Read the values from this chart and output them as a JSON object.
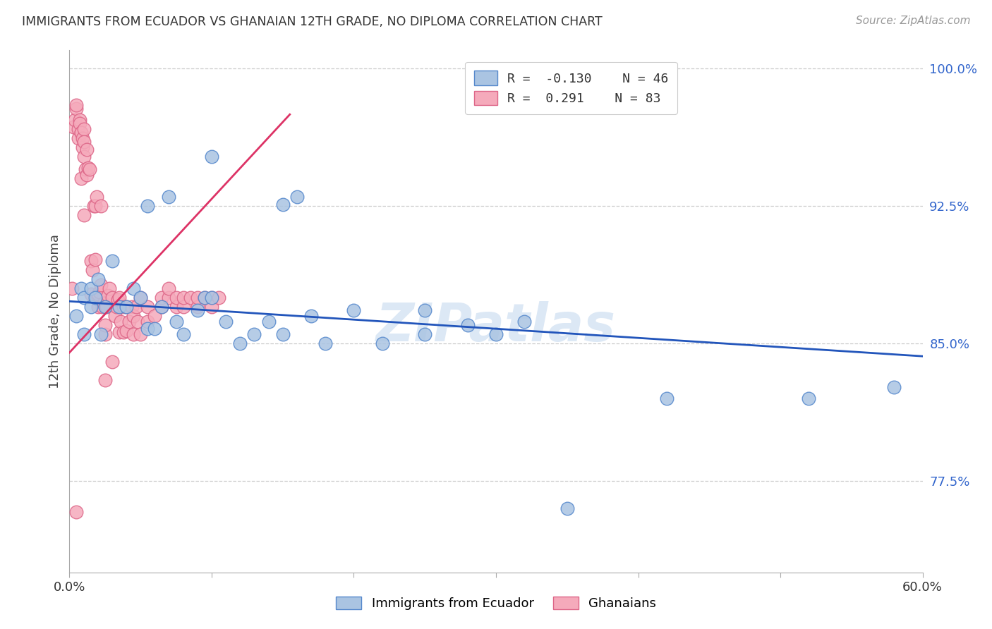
{
  "title": "IMMIGRANTS FROM ECUADOR VS GHANAIAN 12TH GRADE, NO DIPLOMA CORRELATION CHART",
  "source": "Source: ZipAtlas.com",
  "xlabel_blue": "Immigrants from Ecuador",
  "xlabel_pink": "Ghanaians",
  "ylabel": "12th Grade, No Diploma",
  "xmin": 0.0,
  "xmax": 0.6,
  "ymin": 0.725,
  "ymax": 1.01,
  "yticks": [
    0.775,
    0.85,
    0.925,
    1.0
  ],
  "ytick_labels": [
    "77.5%",
    "85.0%",
    "92.5%",
    "100.0%"
  ],
  "xticks": [
    0.0,
    0.1,
    0.2,
    0.3,
    0.4,
    0.5,
    0.6
  ],
  "xtick_labels": [
    "0.0%",
    "",
    "",
    "",
    "",
    "",
    "60.0%"
  ],
  "blue_R": -0.13,
  "blue_N": 46,
  "pink_R": 0.291,
  "pink_N": 83,
  "blue_color": "#aac4e2",
  "blue_edge": "#5588cc",
  "pink_color": "#f5aabb",
  "pink_edge": "#dd6688",
  "blue_line_color": "#2255bb",
  "pink_line_color": "#dd3366",
  "watermark": "ZIPatlas",
  "watermark_color": "#dce8f5",
  "blue_line_x0": 0.0,
  "blue_line_x1": 0.6,
  "blue_line_y0": 0.873,
  "blue_line_y1": 0.843,
  "pink_line_x0": 0.0,
  "pink_line_x1": 0.155,
  "pink_line_y0": 0.845,
  "pink_line_y1": 0.975,
  "blue_scatter_x": [
    0.005,
    0.008,
    0.01,
    0.01,
    0.015,
    0.015,
    0.018,
    0.02,
    0.022,
    0.025,
    0.03,
    0.035,
    0.04,
    0.045,
    0.05,
    0.055,
    0.06,
    0.065,
    0.07,
    0.075,
    0.08,
    0.09,
    0.095,
    0.1,
    0.11,
    0.12,
    0.13,
    0.14,
    0.15,
    0.16,
    0.17,
    0.18,
    0.2,
    0.22,
    0.25,
    0.28,
    0.3,
    0.32,
    0.35,
    0.25,
    0.42,
    0.52,
    0.58,
    0.055,
    0.15,
    0.1
  ],
  "blue_scatter_y": [
    0.865,
    0.88,
    0.855,
    0.875,
    0.87,
    0.88,
    0.875,
    0.885,
    0.855,
    0.87,
    0.895,
    0.87,
    0.87,
    0.88,
    0.875,
    0.858,
    0.858,
    0.87,
    0.93,
    0.862,
    0.855,
    0.868,
    0.875,
    0.952,
    0.862,
    0.85,
    0.855,
    0.862,
    0.926,
    0.93,
    0.865,
    0.85,
    0.868,
    0.85,
    0.855,
    0.86,
    0.855,
    0.862,
    0.76,
    0.868,
    0.82,
    0.82,
    0.826,
    0.925,
    0.855,
    0.875
  ],
  "pink_scatter_x": [
    0.002,
    0.003,
    0.004,
    0.005,
    0.005,
    0.006,
    0.006,
    0.007,
    0.007,
    0.008,
    0.008,
    0.008,
    0.009,
    0.009,
    0.01,
    0.01,
    0.01,
    0.01,
    0.011,
    0.012,
    0.012,
    0.013,
    0.014,
    0.015,
    0.015,
    0.016,
    0.017,
    0.018,
    0.018,
    0.019,
    0.02,
    0.02,
    0.02,
    0.021,
    0.022,
    0.022,
    0.023,
    0.024,
    0.025,
    0.025,
    0.026,
    0.027,
    0.028,
    0.03,
    0.032,
    0.033,
    0.034,
    0.035,
    0.035,
    0.036,
    0.038,
    0.038,
    0.04,
    0.04,
    0.042,
    0.044,
    0.045,
    0.045,
    0.047,
    0.048,
    0.05,
    0.05,
    0.055,
    0.055,
    0.06,
    0.065,
    0.065,
    0.07,
    0.07,
    0.075,
    0.075,
    0.08,
    0.08,
    0.085,
    0.09,
    0.09,
    0.095,
    0.1,
    0.1,
    0.105,
    0.025,
    0.03,
    0.005
  ],
  "pink_scatter_y": [
    0.88,
    0.968,
    0.972,
    0.978,
    0.98,
    0.962,
    0.967,
    0.972,
    0.97,
    0.965,
    0.94,
    0.965,
    0.957,
    0.962,
    0.967,
    0.92,
    0.952,
    0.96,
    0.945,
    0.942,
    0.956,
    0.946,
    0.945,
    0.877,
    0.895,
    0.89,
    0.925,
    0.896,
    0.925,
    0.93,
    0.87,
    0.876,
    0.877,
    0.878,
    0.882,
    0.925,
    0.87,
    0.872,
    0.855,
    0.86,
    0.87,
    0.876,
    0.88,
    0.875,
    0.865,
    0.87,
    0.874,
    0.856,
    0.875,
    0.862,
    0.856,
    0.87,
    0.857,
    0.87,
    0.862,
    0.87,
    0.855,
    0.865,
    0.87,
    0.862,
    0.855,
    0.875,
    0.862,
    0.87,
    0.865,
    0.87,
    0.875,
    0.875,
    0.88,
    0.87,
    0.875,
    0.87,
    0.875,
    0.875,
    0.87,
    0.875,
    0.875,
    0.875,
    0.87,
    0.875,
    0.83,
    0.84,
    0.758
  ]
}
